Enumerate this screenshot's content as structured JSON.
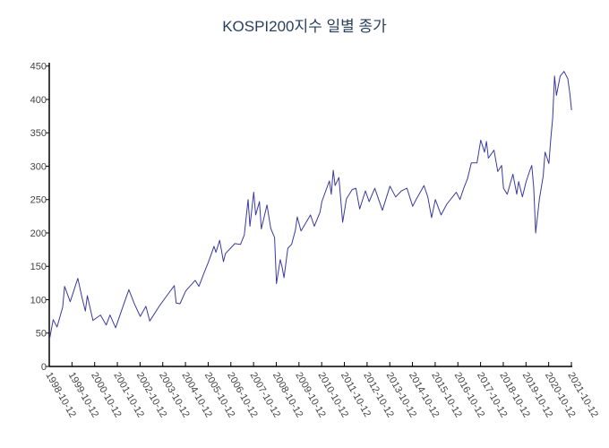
{
  "chart_data": {
    "type": "line",
    "title": "KOSPI200지수 일별 종가",
    "xlabel": "",
    "ylabel": "",
    "xlim": [
      "1998-10-12",
      "2021-10-12"
    ],
    "ylim": [
      0,
      455
    ],
    "grid": false,
    "line_color": "#3a3aa0",
    "x_tick_labels": [
      "1998-10-12",
      "1999-10-12",
      "2000-10-12",
      "2001-10-12",
      "2002-10-12",
      "2003-10-12",
      "2004-10-12",
      "2005-10-12",
      "2006-10-12",
      "2007-10-12",
      "2008-10-12",
      "2009-10-12",
      "2010-10-12",
      "2011-10-12",
      "2012-10-12",
      "2013-10-12",
      "2014-10-12",
      "2015-10-12",
      "2016-10-12",
      "2017-10-12",
      "2018-10-12",
      "2019-10-12",
      "2020-10-12",
      "2021-10-12"
    ],
    "y_ticks": [
      0,
      50,
      100,
      150,
      200,
      250,
      300,
      350,
      400,
      450
    ],
    "y_tick_labels": [
      "0",
      "50",
      "100",
      "150",
      "200",
      "250",
      "300",
      "350",
      "400",
      "450"
    ],
    "series": [
      {
        "points": [
          [
            "1998-10",
            40
          ],
          [
            "1998-12",
            70
          ],
          [
            "1999-02",
            59
          ],
          [
            "1999-05",
            89
          ],
          [
            "1999-06",
            120
          ],
          [
            "1999-09",
            97
          ],
          [
            "2000-01",
            132
          ],
          [
            "2000-03",
            106
          ],
          [
            "2000-05",
            83
          ],
          [
            "2000-06",
            106
          ],
          [
            "2000-09",
            69
          ],
          [
            "2001-01",
            77
          ],
          [
            "2001-04",
            62
          ],
          [
            "2001-06",
            77
          ],
          [
            "2001-09",
            58
          ],
          [
            "2001-12",
            83
          ],
          [
            "2002-04",
            115
          ],
          [
            "2002-07",
            93
          ],
          [
            "2002-10",
            75
          ],
          [
            "2003-01",
            90
          ],
          [
            "2003-03",
            68
          ],
          [
            "2003-08",
            90
          ],
          [
            "2003-11",
            102
          ],
          [
            "2004-04",
            121
          ],
          [
            "2004-05",
            95
          ],
          [
            "2004-07",
            94
          ],
          [
            "2004-10",
            113
          ],
          [
            "2005-03",
            129
          ],
          [
            "2005-05",
            120
          ],
          [
            "2005-08",
            142
          ],
          [
            "2005-10",
            156
          ],
          [
            "2006-01",
            180
          ],
          [
            "2006-02",
            171
          ],
          [
            "2006-04",
            189
          ],
          [
            "2006-06",
            157
          ],
          [
            "2006-07",
            169
          ],
          [
            "2006-12",
            184
          ],
          [
            "2007-03",
            183
          ],
          [
            "2007-05",
            197
          ],
          [
            "2007-07",
            250
          ],
          [
            "2007-08",
            210
          ],
          [
            "2007-10",
            261
          ],
          [
            "2007-11",
            227
          ],
          [
            "2008-01",
            247
          ],
          [
            "2008-02",
            206
          ],
          [
            "2008-03",
            218
          ],
          [
            "2008-05",
            242
          ],
          [
            "2008-07",
            207
          ],
          [
            "2008-09",
            193
          ],
          [
            "2008-10",
            124
          ],
          [
            "2008-12",
            160
          ],
          [
            "2009-01",
            149
          ],
          [
            "2009-02",
            133
          ],
          [
            "2009-04",
            177
          ],
          [
            "2009-06",
            183
          ],
          [
            "2009-08",
            204
          ],
          [
            "2009-09",
            224
          ],
          [
            "2009-11",
            203
          ],
          [
            "2010-04",
            227
          ],
          [
            "2010-06",
            210
          ],
          [
            "2010-09",
            231
          ],
          [
            "2010-10",
            247
          ],
          [
            "2011-02",
            278
          ],
          [
            "2011-03",
            258
          ],
          [
            "2011-04",
            294
          ],
          [
            "2011-05",
            271
          ],
          [
            "2011-07",
            283
          ],
          [
            "2011-09",
            216
          ],
          [
            "2011-11",
            251
          ],
          [
            "2012-02",
            265
          ],
          [
            "2012-04",
            267
          ],
          [
            "2012-06",
            236
          ],
          [
            "2012-09",
            263
          ],
          [
            "2012-11",
            247
          ],
          [
            "2013-02",
            267
          ],
          [
            "2013-04",
            250
          ],
          [
            "2013-06",
            234
          ],
          [
            "2013-10",
            270
          ],
          [
            "2014-01",
            254
          ],
          [
            "2014-04",
            263
          ],
          [
            "2014-07",
            267
          ],
          [
            "2014-10",
            240
          ],
          [
            "2014-12",
            251
          ],
          [
            "2015-04",
            271
          ],
          [
            "2015-06",
            254
          ],
          [
            "2015-08",
            223
          ],
          [
            "2015-10",
            250
          ],
          [
            "2016-01",
            227
          ],
          [
            "2016-04",
            243
          ],
          [
            "2016-09",
            261
          ],
          [
            "2016-11",
            250
          ],
          [
            "2017-01",
            267
          ],
          [
            "2017-03",
            281
          ],
          [
            "2017-05",
            305
          ],
          [
            "2017-08",
            305
          ],
          [
            "2017-10",
            339
          ],
          [
            "2017-12",
            321
          ],
          [
            "2018-01",
            337
          ],
          [
            "2018-02",
            312
          ],
          [
            "2018-05",
            324
          ],
          [
            "2018-07",
            292
          ],
          [
            "2018-09",
            301
          ],
          [
            "2018-10",
            267
          ],
          [
            "2018-12",
            258
          ],
          [
            "2019-03",
            288
          ],
          [
            "2019-05",
            258
          ],
          [
            "2019-06",
            277
          ],
          [
            "2019-08",
            254
          ],
          [
            "2019-10",
            277
          ],
          [
            "2019-12",
            294
          ],
          [
            "2020-01",
            301
          ],
          [
            "2020-02",
            267
          ],
          [
            "2020-03",
            200
          ],
          [
            "2020-05",
            251
          ],
          [
            "2020-07",
            285
          ],
          [
            "2020-08",
            321
          ],
          [
            "2020-10",
            304
          ],
          [
            "2020-11",
            341
          ],
          [
            "2020-12",
            372
          ],
          [
            "2021-01",
            435
          ],
          [
            "2021-02",
            406
          ],
          [
            "2021-04",
            435
          ],
          [
            "2021-06",
            442
          ],
          [
            "2021-08",
            431
          ],
          [
            "2021-09",
            411
          ],
          [
            "2021-10",
            384
          ]
        ]
      }
    ]
  }
}
